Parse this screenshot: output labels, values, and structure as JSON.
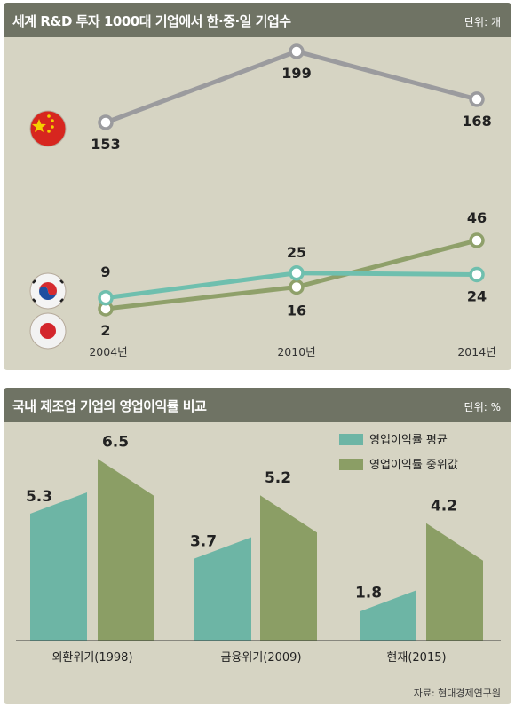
{
  "colors": {
    "header": "#6f7364",
    "panel": "#d6d4c3",
    "china_line": "#9b9b9e",
    "korea_line": "#6fbfae",
    "japan_line": "#8fa06a",
    "bar_avg": "#6db5a5",
    "bar_median": "#8b9e65"
  },
  "icons": {
    "china": "china-flag-icon",
    "korea": "korea-flag-icon",
    "japan": "japan-flag-icon"
  },
  "chart_data": [
    {
      "type": "line",
      "title": "세계 R&D 투자 1000대 기업에서 한·중·일 기업수",
      "unit": "단위: 개",
      "x": [
        "2004년",
        "2010년",
        "2014년"
      ],
      "series": [
        {
          "id": "china",
          "values": [
            153,
            199,
            168
          ]
        },
        {
          "id": "korea",
          "values": [
            9,
            25,
            24
          ]
        },
        {
          "id": "japan",
          "values": [
            2,
            16,
            46
          ]
        }
      ]
    },
    {
      "type": "bar",
      "title": "국내 제조업 기업의 영업이익률 비교",
      "unit": "단위: %",
      "categories": [
        "외환위기(1998)",
        "금융위기(2009)",
        "현재(2015)"
      ],
      "series": [
        {
          "name": "영업이익률  평균",
          "values": [
            5.3,
            3.7,
            1.8
          ]
        },
        {
          "name": "영업이익률  중위값",
          "values": [
            6.5,
            5.2,
            4.2
          ]
        }
      ],
      "value_labels": {
        "avg": [
          "5.3",
          "3.7",
          "1.8"
        ],
        "median": [
          "6.5",
          "5.2",
          "4.2"
        ]
      },
      "source": "자료: 현대경제연구원"
    }
  ]
}
